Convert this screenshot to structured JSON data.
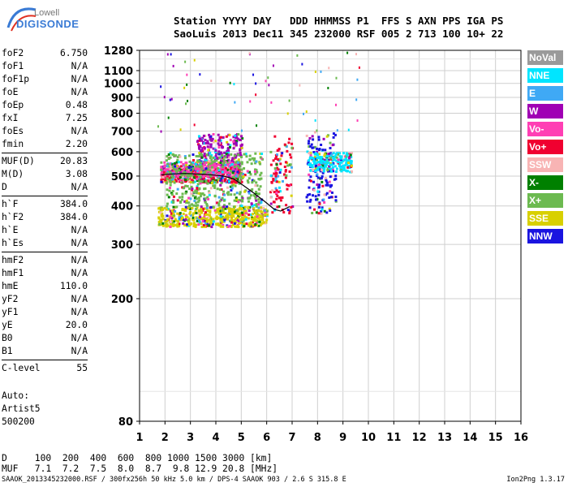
{
  "logo": {
    "line1": "Lowell",
    "line2": "DIGISONDE"
  },
  "header": {
    "line1": "Station YYYY DAY   DDD HHMMSS P1  FFS S AXN PPS IGA PS",
    "line2": "SaoLuis 2013 Dec11 345 232000 RSF 005 2 713 100 10+ 22"
  },
  "params": [
    [
      {
        "name": "foF2",
        "value": "6.750"
      },
      {
        "name": "foF1",
        "value": "N/A"
      },
      {
        "name": "foF1p",
        "value": "N/A"
      },
      {
        "name": "foE",
        "value": "N/A"
      },
      {
        "name": "foEp",
        "value": "0.48"
      },
      {
        "name": "fxI",
        "value": "7.25"
      },
      {
        "name": "foEs",
        "value": "N/A"
      },
      {
        "name": "fmin",
        "value": "2.20"
      }
    ],
    [
      {
        "name": "MUF(D)",
        "value": "20.83"
      },
      {
        "name": "M(D)",
        "value": "3.08"
      },
      {
        "name": "D",
        "value": "N/A"
      }
    ],
    [
      {
        "name": "h`F",
        "value": "384.0"
      },
      {
        "name": "h`F2",
        "value": "384.0"
      },
      {
        "name": "h`E",
        "value": "N/A"
      },
      {
        "name": "h`Es",
        "value": "N/A"
      }
    ],
    [
      {
        "name": "hmF2",
        "value": "N/A"
      },
      {
        "name": "hmF1",
        "value": "N/A"
      },
      {
        "name": "hmE",
        "value": "110.0"
      },
      {
        "name": "yF2",
        "value": "N/A"
      },
      {
        "name": "yF1",
        "value": "N/A"
      },
      {
        "name": "yE",
        "value": "20.0"
      },
      {
        "name": "B0",
        "value": "N/A"
      },
      {
        "name": "B1",
        "value": "N/A"
      }
    ],
    [
      {
        "name": "C-level",
        "value": "55"
      }
    ]
  ],
  "auto": {
    "line1": "Auto:",
    "line2": "Artist5",
    "line3": "500200"
  },
  "footer": {
    "d_row": "D     100  200  400  600  800 1000 1500 3000 [km]",
    "muf_row": "MUF   7.1  7.2  7.5  8.0  8.7  9.8 12.9 20.8 [MHz]",
    "file_line": "SAAOK_2013345232000.RSF / 300fx256h 50 kHz 5.0 km / DPS-4 SAAOK 903 / 2.6 S 315.8 E",
    "version": "Ion2Png 1.3.17"
  },
  "legend": [
    {
      "label": "NoVal",
      "color": "#9a9a9a"
    },
    {
      "label": "NNE",
      "color": "#00e5ff"
    },
    {
      "label": "E",
      "color": "#3fa9f5"
    },
    {
      "label": "W",
      "color": "#a000b4"
    },
    {
      "label": "Vo-",
      "color": "#ff3fb4"
    },
    {
      "label": "Vo+",
      "color": "#f00030"
    },
    {
      "label": "SSW",
      "color": "#f8b4b4"
    },
    {
      "label": "X-",
      "color": "#008000"
    },
    {
      "label": "X+",
      "color": "#6cba50"
    },
    {
      "label": "SSE",
      "color": "#d8d000"
    },
    {
      "label": "NNW",
      "color": "#1a14e0"
    }
  ],
  "chart_data": {
    "type": "scatter",
    "x_ticks": [
      1,
      2,
      3,
      4,
      5,
      6,
      7,
      8,
      9,
      10,
      11,
      12,
      13,
      14,
      15,
      16
    ],
    "y_ticks": [
      80,
      200,
      300,
      400,
      500,
      600,
      700,
      800,
      900,
      1000,
      1100,
      1280
    ],
    "x_range": [
      1,
      16
    ],
    "y_range": [
      80,
      1280
    ],
    "y_scale": "log",
    "grid": true,
    "trace": {
      "x": [
        1.85,
        2.3,
        2.8,
        3.3,
        3.8,
        4.3,
        4.7,
        5.1,
        5.5,
        5.9,
        6.3,
        6.55,
        6.9
      ],
      "y": [
        505,
        508,
        510,
        508,
        505,
        500,
        490,
        465,
        440,
        415,
        390,
        385,
        398
      ]
    },
    "clusters": [
      {
        "name": "lower-yellow",
        "x": [
          1.7,
          6.0
        ],
        "y": [
          345,
          400
        ],
        "color": "#d8d000"
      },
      {
        "name": "mid-red",
        "x": [
          1.8,
          5.0
        ],
        "y": [
          480,
          530
        ],
        "color": "#f00030"
      },
      {
        "name": "upper-purple",
        "x": [
          3.2,
          5.0
        ],
        "y": [
          540,
          690
        ],
        "color": "#a000b4"
      },
      {
        "name": "mid-pink",
        "x": [
          1.8,
          4.8
        ],
        "y": [
          500,
          560
        ],
        "color": "#ff3fb4"
      },
      {
        "name": "mid-mixed",
        "x": [
          2.0,
          5.8
        ],
        "y": [
          400,
          600
        ],
        "color": "#6cba50"
      },
      {
        "name": "col-6-7",
        "x": [
          6.1,
          7.0
        ],
        "y": [
          380,
          680
        ],
        "color": "#f00030"
      },
      {
        "name": "col-8",
        "x": [
          7.5,
          8.7
        ],
        "y": [
          380,
          700
        ],
        "color": "#1a14e0"
      },
      {
        "name": "col-8-upper",
        "x": [
          7.6,
          9.3
        ],
        "y": [
          520,
          600
        ],
        "color": "#00e5ff"
      }
    ]
  }
}
